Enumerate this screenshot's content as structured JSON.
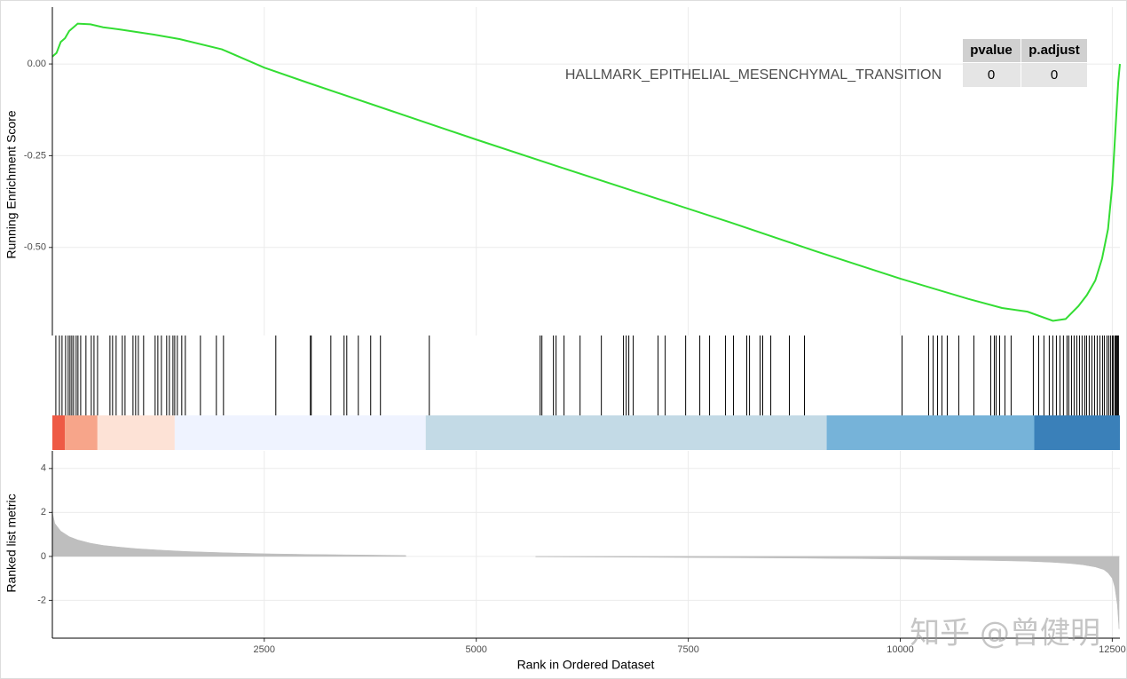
{
  "chart_data": [
    {
      "type": "line",
      "ylabel": "Running Enrichment Score",
      "color": "#33dd33",
      "annotation": "HALLMARK_EPITHELIAL_MESENCHYMAL_TRANSITION",
      "table": {
        "header": [
          "pvalue",
          "p.adjust"
        ],
        "rows": [
          [
            0,
            0
          ]
        ]
      },
      "xlim": [
        1,
        12590
      ],
      "ylim": [
        -0.74,
        0.155
      ],
      "yticks": [
        {
          "value": 0,
          "label": "0.00"
        },
        -0.25,
        {
          "value": -0.5,
          "label": "-0.50"
        }
      ],
      "x": [
        1,
        50,
        100,
        150,
        200,
        300,
        450,
        600,
        800,
        1000,
        1200,
        1500,
        2000,
        2500,
        3000,
        4000,
        5000,
        6000,
        7000,
        8000,
        9000,
        10000,
        10800,
        11200,
        11500,
        11800,
        11950,
        12100,
        12200,
        12300,
        12380,
        12450,
        12500,
        12540,
        12570,
        12590
      ],
      "values": [
        0.02,
        0.03,
        0.06,
        0.07,
        0.09,
        0.11,
        0.108,
        0.1,
        0.094,
        0.087,
        0.08,
        0.068,
        0.04,
        -0.01,
        -0.05,
        -0.128,
        -0.206,
        -0.282,
        -0.357,
        -0.432,
        -0.51,
        -0.585,
        -0.64,
        -0.665,
        -0.675,
        -0.7,
        -0.695,
        -0.66,
        -0.63,
        -0.59,
        -0.53,
        -0.45,
        -0.33,
        -0.17,
        -0.05,
        0.0
      ]
    },
    {
      "type": "rug",
      "color": "#000000",
      "xlim": [
        1,
        12590
      ],
      "hits": [
        42,
        84,
        115,
        157,
        188,
        209,
        230,
        251,
        282,
        303,
        335,
        397,
        460,
        492,
        534,
        680,
        711,
        753,
        826,
        858,
        952,
        983,
        1015,
        1077,
        1213,
        1245,
        1287,
        1349,
        1381,
        1423,
        1444,
        1475,
        1527,
        1569,
        1747,
        1935,
        2019,
        2636,
        3044,
        3054,
        3285,
        3441,
        3473,
        3609,
        3755,
        3870,
        4446,
        5753,
        5774,
        5910,
        5941,
        6035,
        6224,
        6475,
        6736,
        6768,
        6799,
        6851,
        7144,
        7228,
        7469,
        7636,
        7751,
        7939,
        8033,
        8190,
        8222,
        8347,
        8378,
        8473,
        8692,
        8870,
        10021,
        10334,
        10387,
        10439,
        10491,
        10554,
        10690,
        10868,
        11067,
        11109,
        11130,
        11172,
        11234,
        11307,
        11569,
        11632,
        11694,
        11757,
        11799,
        11841,
        11883,
        11924,
        11966,
        11987,
        12019,
        12050,
        12082,
        12113,
        12144,
        12176,
        12197,
        12228,
        12260,
        12291,
        12322,
        12354,
        12385,
        12406,
        12437,
        12458,
        12479,
        12500,
        12510,
        12531,
        12542,
        12552,
        12563,
        12573
      ],
      "bands": [
        {
          "start": 1,
          "end": 150,
          "color": "#ee5a45"
        },
        {
          "start": 150,
          "end": 533,
          "color": "#f7a58a"
        },
        {
          "start": 533,
          "end": 1444,
          "color": "#fde2d6"
        },
        {
          "start": 1444,
          "end": 4404,
          "color": "#eff3ff"
        },
        {
          "start": 4404,
          "end": 9132,
          "color": "#c3dae6"
        },
        {
          "start": 9132,
          "end": 11580,
          "color": "#76b3d9"
        },
        {
          "start": 11580,
          "end": 12590,
          "color": "#3a80b9"
        }
      ]
    },
    {
      "type": "area",
      "ylabel": "Ranked list metric",
      "xlabel": "Rank in Ordered Dataset",
      "color": "#bebebe",
      "xlim": [
        1,
        12590
      ],
      "ylim": [
        -3.72,
        4.8
      ],
      "yticks": [
        4,
        2,
        0,
        -2
      ],
      "xticks": [
        2500,
        5000,
        7500,
        10000,
        12500
      ],
      "x": [
        1,
        30,
        100,
        200,
        300,
        450,
        600,
        800,
        1000,
        1300,
        1600,
        2000,
        2500,
        3000,
        3500,
        4000,
        4170,
        5000,
        5700,
        6500,
        7500,
        8500,
        9500,
        10000,
        10500,
        11000,
        11500,
        11800,
        12000,
        12150,
        12300,
        12400,
        12450,
        12500,
        12530,
        12560,
        12580
      ],
      "values": [
        2.0,
        1.5,
        1.15,
        0.9,
        0.75,
        0.6,
        0.5,
        0.42,
        0.35,
        0.28,
        0.22,
        0.17,
        0.12,
        0.09,
        0.07,
        0.05,
        0.04,
        null,
        -0.02,
        -0.03,
        -0.05,
        -0.07,
        -0.1,
        -0.12,
        -0.15,
        -0.18,
        -0.22,
        -0.27,
        -0.32,
        -0.38,
        -0.48,
        -0.6,
        -0.75,
        -1.0,
        -1.4,
        -2.2,
        -3.3
      ]
    }
  ],
  "watermark": "知乎 @曾健明"
}
